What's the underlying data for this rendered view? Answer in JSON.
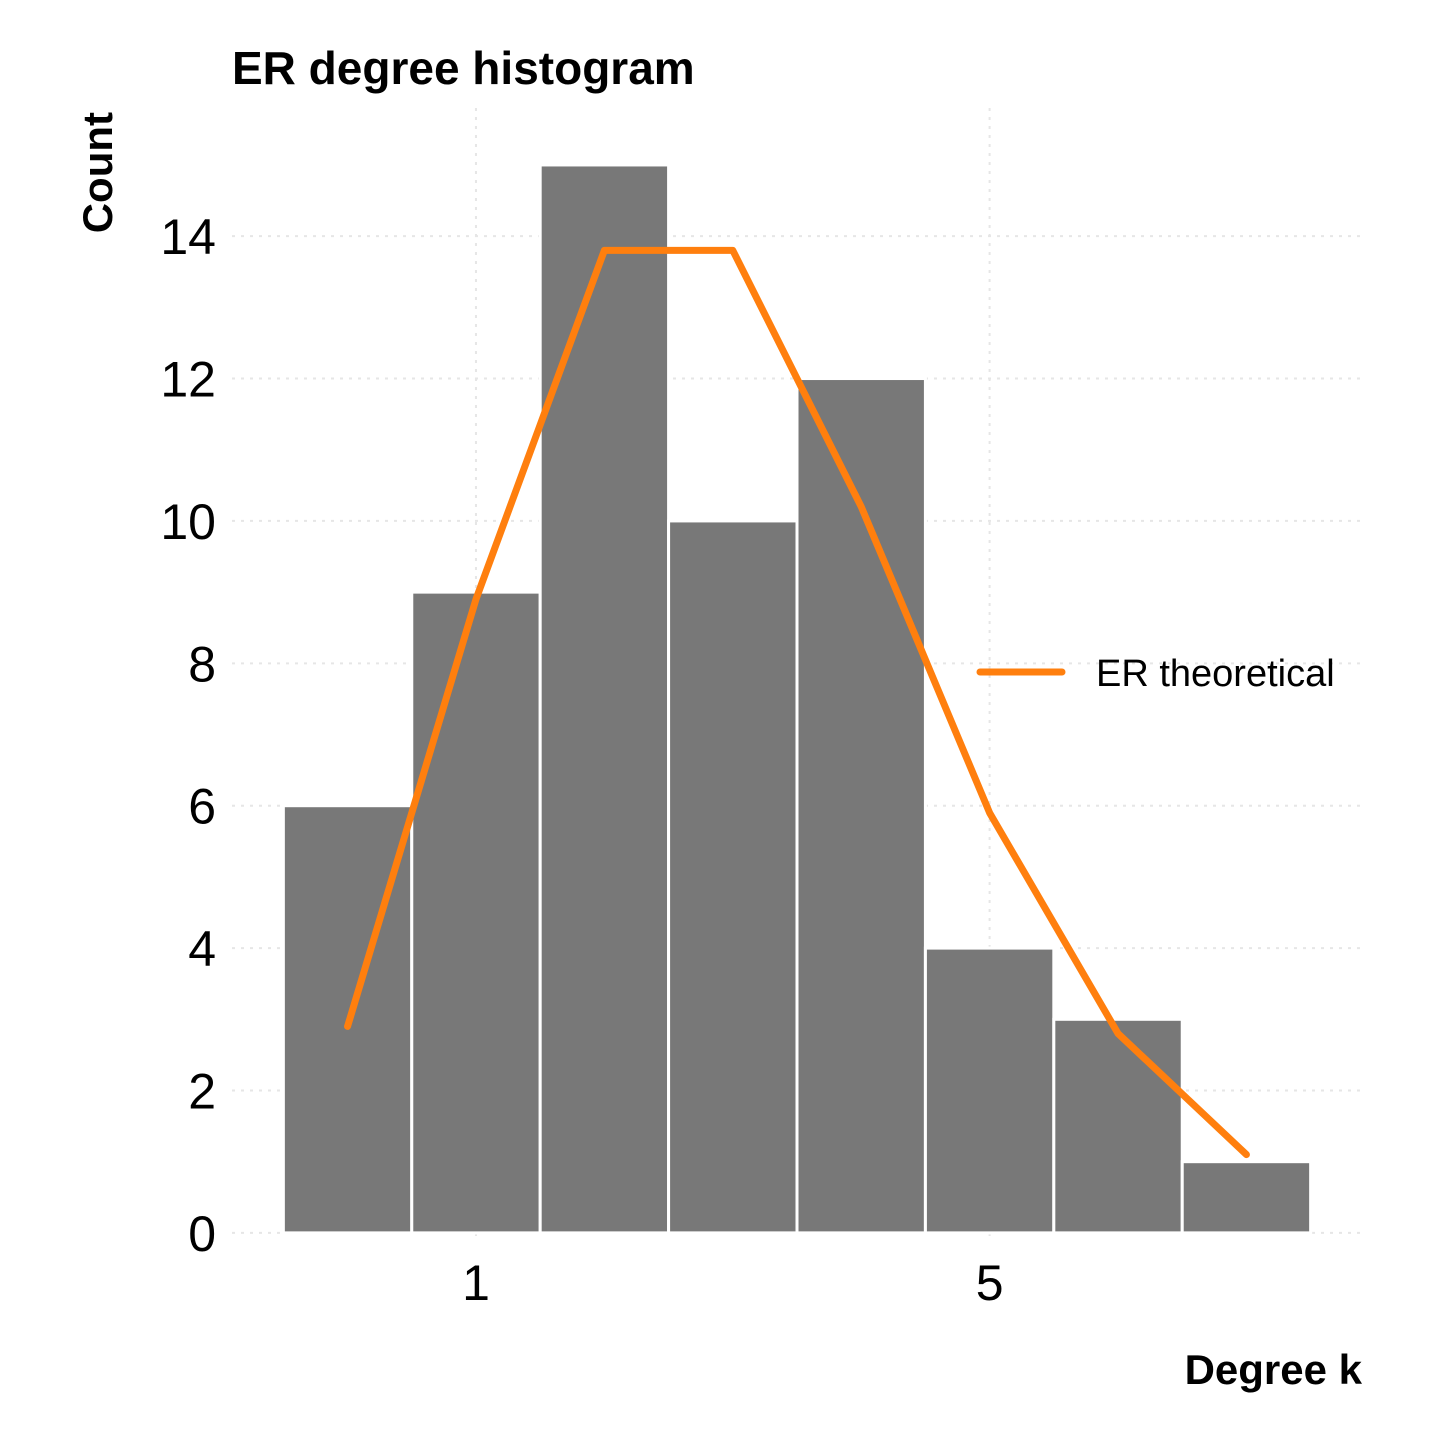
{
  "chart_data": {
    "type": "bar",
    "title": "ER degree histogram",
    "xlabel": "Degree k",
    "ylabel": "Count",
    "xlim": [
      -0.9,
      7.9
    ],
    "ylim": [
      -0.1,
      15.8
    ],
    "x_ticks": [
      1,
      5
    ],
    "y_ticks": [
      0,
      2,
      4,
      6,
      8,
      10,
      12,
      14
    ],
    "grid": true,
    "histogram": {
      "bin_edges": [
        -0.5,
        0.5,
        1.5,
        2.5,
        3.5,
        4.5,
        5.5,
        6.5,
        7.5
      ],
      "counts": [
        6,
        9,
        15,
        10,
        12,
        4,
        3,
        1
      ]
    },
    "series": [
      {
        "name": "ER theoretical",
        "x": [
          0,
          1,
          2,
          3,
          4,
          5,
          6,
          7
        ],
        "y": [
          2.9,
          8.9,
          13.8,
          13.8,
          10.2,
          5.9,
          2.8,
          1.1
        ]
      }
    ],
    "legend": {
      "position": "right",
      "entries": [
        "ER theoretical"
      ]
    },
    "colors": {
      "bars": "#787878",
      "line": "#ff7f0e",
      "grid": "#e6e6e6"
    }
  }
}
